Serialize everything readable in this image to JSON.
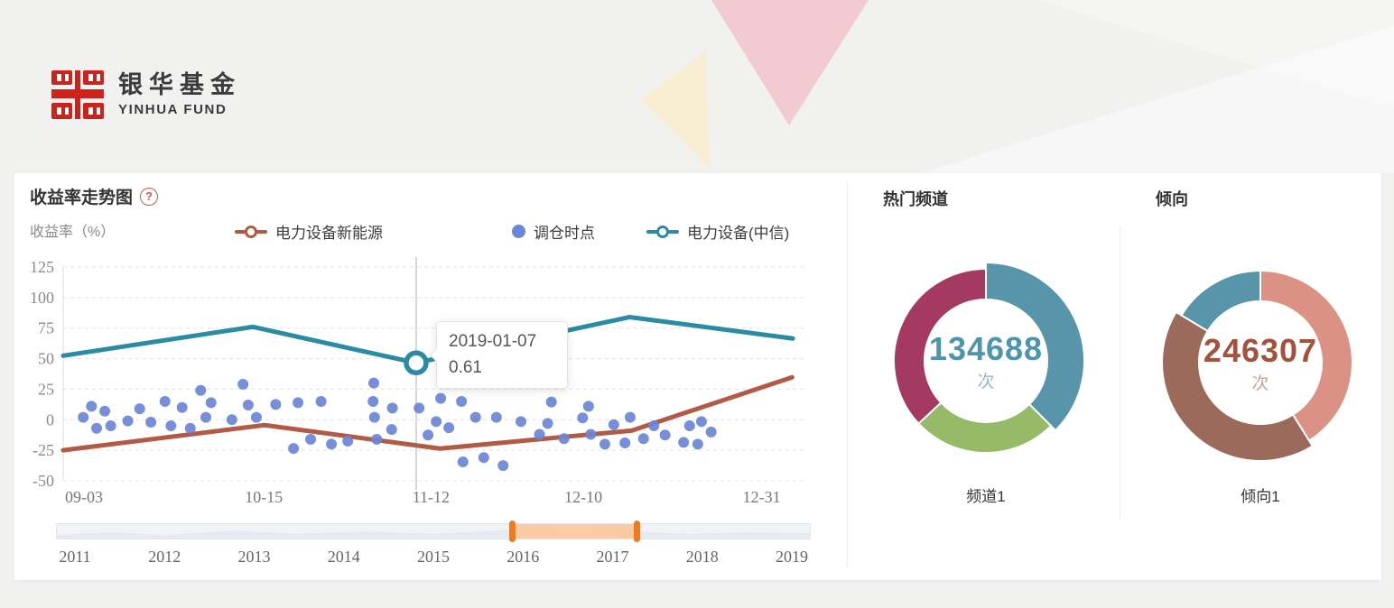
{
  "background": {
    "base_color": "#f1f1f0",
    "pink_triangle_color": "#f2cbd1",
    "cream_triangle_color": "#f8eed2"
  },
  "logo": {
    "cn": "银华基金",
    "en": "YINHUA FUND",
    "red": "#cc241d"
  },
  "panel": {
    "help_glyph": "?"
  },
  "chart_data": [
    {
      "type": "line",
      "title": "收益率走势图",
      "ylabel": "收益率（%）",
      "ylim": [
        -50,
        125
      ],
      "yticks": [
        125,
        100,
        75,
        50,
        25,
        0,
        -25,
        -50
      ],
      "grid": true,
      "legend_position": "top",
      "xticks": [
        {
          "label": "09-03",
          "x": 0.028
        },
        {
          "label": "10-15",
          "x": 0.27
        },
        {
          "label": "11-12",
          "x": 0.495
        },
        {
          "label": "12-10",
          "x": 0.7
        },
        {
          "label": "12-31",
          "x": 0.94
        }
      ],
      "series": [
        {
          "name": "电力设备新能源",
          "kind": "line",
          "color": "#b15a46",
          "points": [
            [
              0.0,
              -25
            ],
            [
              0.271,
              -4.4
            ],
            [
              0.507,
              -23.6
            ],
            [
              0.765,
              -8.9
            ],
            [
              0.981,
              34.7
            ]
          ]
        },
        {
          "name": "调仓时点",
          "kind": "scatter",
          "color": "#6b85d8",
          "points": [
            [
              0.027,
              2
            ],
            [
              0.038,
              11
            ],
            [
              0.045,
              -7
            ],
            [
              0.056,
              7
            ],
            [
              0.064,
              -5
            ],
            [
              0.087,
              -1
            ],
            [
              0.103,
              9
            ],
            [
              0.118,
              -2
            ],
            [
              0.137,
              15
            ],
            [
              0.145,
              -5
            ],
            [
              0.16,
              10
            ],
            [
              0.171,
              -7
            ],
            [
              0.185,
              24
            ],
            [
              0.192,
              2
            ],
            [
              0.199,
              14
            ],
            [
              0.227,
              0
            ],
            [
              0.242,
              29
            ],
            [
              0.249,
              12
            ],
            [
              0.26,
              2
            ],
            [
              0.286,
              12.5
            ],
            [
              0.31,
              -23.5
            ],
            [
              0.316,
              14
            ],
            [
              0.333,
              -16
            ],
            [
              0.347,
              15
            ],
            [
              0.361,
              -20
            ],
            [
              0.383,
              -17.5
            ],
            [
              0.417,
              15
            ],
            [
              0.418,
              30
            ],
            [
              0.419,
              2
            ],
            [
              0.422,
              -16
            ],
            [
              0.442,
              -8
            ],
            [
              0.443,
              9.5
            ],
            [
              0.479,
              9.5
            ],
            [
              0.491,
              -12.5
            ],
            [
              0.502,
              -1.5
            ],
            [
              0.508,
              17.5
            ],
            [
              0.519,
              -6.5
            ],
            [
              0.536,
              15
            ],
            [
              0.538,
              -34.5
            ],
            [
              0.555,
              2
            ],
            [
              0.566,
              -31
            ],
            [
              0.583,
              2
            ],
            [
              0.592,
              -37.5
            ],
            [
              0.616,
              -1.5
            ],
            [
              0.641,
              -12
            ],
            [
              0.652,
              -3
            ],
            [
              0.657,
              14.5
            ],
            [
              0.674,
              -15.5
            ],
            [
              0.699,
              1.5
            ],
            [
              0.707,
              11
            ],
            [
              0.71,
              -12
            ],
            [
              0.729,
              -20
            ],
            [
              0.741,
              -4
            ],
            [
              0.756,
              -19
            ],
            [
              0.763,
              2
            ],
            [
              0.781,
              -15.5
            ],
            [
              0.795,
              -5
            ],
            [
              0.81,
              -12.5
            ],
            [
              0.835,
              -18.5
            ],
            [
              0.843,
              -5
            ],
            [
              0.854,
              -20
            ],
            [
              0.859,
              -1.5
            ],
            [
              0.872,
              -10
            ]
          ]
        },
        {
          "name": "电力设备(中信)",
          "kind": "line",
          "color": "#2b8ba3",
          "points": [
            [
              0.0,
              52.4
            ],
            [
              0.255,
              76
            ],
            [
              0.475,
              46.5
            ],
            [
              0.762,
              84
            ],
            [
              0.982,
              66.5
            ]
          ]
        }
      ],
      "crosshair_x": 0.475,
      "marker": {
        "x": 0.475,
        "y": 46.5,
        "series": "电力设备(中信)"
      },
      "tooltip": {
        "date": "2019-01-07",
        "value": "0.61"
      }
    },
    {
      "type": "donut",
      "title": "热门频道",
      "center_value": "134688",
      "center_unit": "次",
      "center_color": "#4d94ad",
      "unit_color": "#8fbcca",
      "label": "频道1",
      "segments": [
        {
          "name": "segment-teal",
          "color": "#5894aa",
          "start_deg": 0,
          "end_deg": 135,
          "emphasized": true
        },
        {
          "name": "segment-green",
          "color": "#96ba68",
          "start_deg": 135,
          "end_deg": 227,
          "emphasized": false
        },
        {
          "name": "segment-maroon",
          "color": "#a43a60",
          "start_deg": 227,
          "end_deg": 360,
          "emphasized": false
        }
      ]
    },
    {
      "type": "donut",
      "title": "倾向",
      "center_value": "246307",
      "center_unit": "次",
      "center_color": "#a4523c",
      "unit_color": "#cfa093",
      "label": "倾向1",
      "segments": [
        {
          "name": "segment-salmon",
          "color": "#dc9185",
          "start_deg": 0,
          "end_deg": 148,
          "emphasized": false
        },
        {
          "name": "segment-brown",
          "color": "#9c6a5b",
          "start_deg": 148,
          "end_deg": 301,
          "emphasized": true
        },
        {
          "name": "segment-teal",
          "color": "#5894aa",
          "start_deg": 301,
          "end_deg": 360,
          "emphasized": false
        }
      ]
    }
  ],
  "slider": {
    "years": [
      "2011",
      "2012",
      "2013",
      "2014",
      "2015",
      "2016",
      "2017",
      "2018",
      "2019"
    ],
    "selection_start": 0.605,
    "selection_end": 0.77,
    "track_color": "#f1f3f7",
    "range_color": "#f9c9a0",
    "handle_color": "#f07b1d"
  }
}
